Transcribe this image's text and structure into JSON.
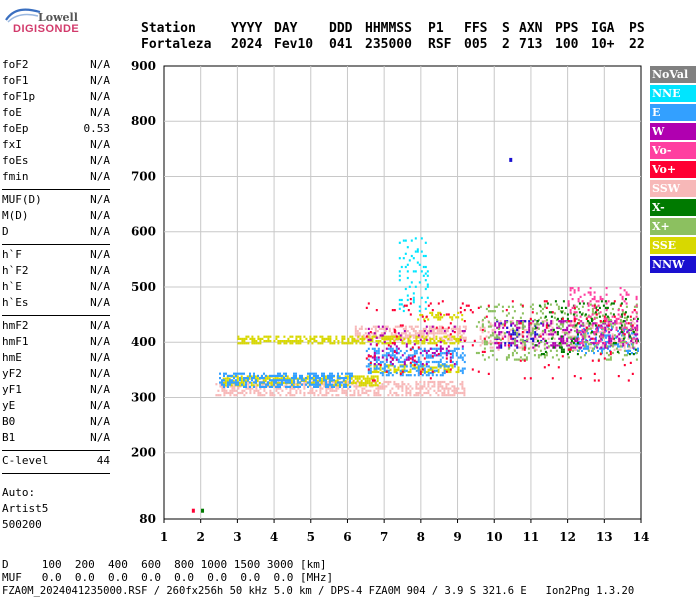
{
  "logo": {
    "top": "Lowell",
    "bottom": "DIGISONDE"
  },
  "header": {
    "labels": [
      "Station",
      "YYYY",
      "DAY",
      "DDD",
      "HHMMSS",
      "P1",
      "FFS",
      "S",
      "AXN",
      "PPS",
      "IGA",
      "PS"
    ],
    "values": [
      "Fortaleza",
      "2024",
      "Fev10",
      "041",
      "235000",
      "RSF",
      "005",
      "2",
      "713",
      "100",
      "10+",
      "22"
    ]
  },
  "params": {
    "group1": [
      {
        "label": "foF2",
        "value": "N/A"
      },
      {
        "label": "foF1",
        "value": "N/A"
      },
      {
        "label": "foF1p",
        "value": "N/A"
      },
      {
        "label": "foE",
        "value": "N/A"
      },
      {
        "label": "foEp",
        "value": "0.53"
      },
      {
        "label": "fxI",
        "value": "N/A"
      },
      {
        "label": "foEs",
        "value": "N/A"
      },
      {
        "label": "fmin",
        "value": "N/A"
      }
    ],
    "group2": [
      {
        "label": "MUF(D)",
        "value": "N/A"
      },
      {
        "label": "M(D)",
        "value": "N/A"
      },
      {
        "label": "D",
        "value": "N/A"
      }
    ],
    "group3": [
      {
        "label": "h`F",
        "value": "N/A"
      },
      {
        "label": "h`F2",
        "value": "N/A"
      },
      {
        "label": "h`E",
        "value": "N/A"
      },
      {
        "label": "h`Es",
        "value": "N/A"
      }
    ],
    "group4": [
      {
        "label": "hmF2",
        "value": "N/A"
      },
      {
        "label": "hmF1",
        "value": "N/A"
      },
      {
        "label": "hmE",
        "value": "N/A"
      },
      {
        "label": "yF2",
        "value": "N/A"
      },
      {
        "label": "yF1",
        "value": "N/A"
      },
      {
        "label": "yE",
        "value": "N/A"
      },
      {
        "label": "B0",
        "value": "N/A"
      },
      {
        "label": "B1",
        "value": "N/A"
      }
    ],
    "group5": [
      {
        "label": "C-level",
        "value": "44"
      }
    ]
  },
  "auto": [
    "Auto:",
    "Artist5",
    "500200"
  ],
  "bottom": {
    "d_line": "D     100  200  400  600  800 1000 1500 3000 [km]",
    "muf_line": "MUF   0.0  0.0  0.0  0.0  0.0  0.0  0.0  0.0 [MHz]",
    "footer": "FZA0M_2024041235000.RSF / 260fx256h 50 kHz 5.0 km / DPS-4 FZA0M 904 / 3.9 S 321.6 E   Ion2Png 1.3.20"
  },
  "legend": [
    {
      "label": "NoVal",
      "color": "#808080"
    },
    {
      "label": "NNE",
      "color": "#00e5ff"
    },
    {
      "label": "E",
      "color": "#33a0ff"
    },
    {
      "label": "W",
      "color": "#b000b0"
    },
    {
      "label": "Vo-",
      "color": "#ff3fa0"
    },
    {
      "label": "Vo+",
      "color": "#ff0033"
    },
    {
      "label": "SSW",
      "color": "#f7b8b8"
    },
    {
      "label": "X-",
      "color": "#007a00"
    },
    {
      "label": "X+",
      "color": "#8cc060"
    },
    {
      "label": "SSE",
      "color": "#d8d800"
    },
    {
      "label": "NNW",
      "color": "#1a10d0"
    }
  ],
  "chart_data": {
    "type": "scatter",
    "xlabel": "",
    "ylabel": "",
    "xlim": [
      1,
      14
    ],
    "ylim": [
      80,
      900
    ],
    "x_ticks": [
      1,
      2,
      3,
      4,
      5,
      6,
      7,
      8,
      9,
      10,
      11,
      12,
      13,
      14
    ],
    "y_ticks": [
      80,
      200,
      300,
      400,
      500,
      600,
      700,
      800,
      900
    ],
    "grid": true,
    "clusters": [
      {
        "type": "SSW",
        "x_range": [
          2.4,
          9.2
        ],
        "h_range": [
          305,
          330
        ],
        "density": 0.5
      },
      {
        "type": "SSW",
        "x_range": [
          6.2,
          9.2
        ],
        "h_range": [
          405,
          430
        ],
        "density": 0.55
      },
      {
        "type": "SSW",
        "x_range": [
          9.6,
          13.9
        ],
        "h_range": [
          385,
          440
        ],
        "density": 0.25
      },
      {
        "type": "SSE",
        "x_range": [
          3.0,
          9.1
        ],
        "h_range": [
          398,
          412
        ],
        "density": 0.6
      },
      {
        "type": "SSE",
        "x_range": [
          2.6,
          6.9
        ],
        "h_range": [
          322,
          340
        ],
        "density": 0.6
      },
      {
        "type": "SSE",
        "x_range": [
          6.6,
          9.0
        ],
        "h_range": [
          345,
          360
        ],
        "density": 0.5
      },
      {
        "type": "SSE",
        "x_range": [
          7.9,
          9.1
        ],
        "h_range": [
          440,
          455
        ],
        "density": 0.35
      },
      {
        "type": "E",
        "x_range": [
          2.5,
          6.1
        ],
        "h_range": [
          318,
          345
        ],
        "density": 0.5
      },
      {
        "type": "E",
        "x_range": [
          6.5,
          9.2
        ],
        "h_range": [
          340,
          390
        ],
        "density": 0.35
      },
      {
        "type": "E",
        "x_range": [
          12.2,
          13.9
        ],
        "h_range": [
          380,
          430
        ],
        "density": 0.3
      },
      {
        "type": "NNE",
        "x_range": [
          7.4,
          8.2
        ],
        "h_range": [
          455,
          590
        ],
        "density": 0.12
      },
      {
        "type": "W",
        "x_range": [
          10.0,
          13.9
        ],
        "h_range": [
          390,
          440
        ],
        "density": 0.25
      },
      {
        "type": "W",
        "x_range": [
          6.5,
          9.2
        ],
        "h_range": [
          360,
          430
        ],
        "density": 0.1
      },
      {
        "type": "NNW",
        "x_range": [
          10.0,
          11.3
        ],
        "h_range": [
          390,
          440
        ],
        "density": 0.2
      },
      {
        "type": "X+",
        "x_range": [
          9.5,
          13.9
        ],
        "h_range": [
          370,
          470
        ],
        "density": 0.15
      },
      {
        "type": "X-",
        "x_range": [
          11.0,
          13.9
        ],
        "h_range": [
          380,
          480
        ],
        "density": 0.08
      },
      {
        "type": "Vo-",
        "x_range": [
          12.0,
          13.9
        ],
        "h_range": [
          400,
          500
        ],
        "density": 0.15
      },
      {
        "type": "Vo+",
        "x_range": [
          6.5,
          13.9
        ],
        "h_range": [
          330,
          480
        ],
        "density": 0.03
      }
    ],
    "isolated_points": [
      {
        "type": "NNW",
        "x": 10.45,
        "h": 730
      },
      {
        "type": "Vo+",
        "x": 1.8,
        "h": 95
      },
      {
        "type": "X-",
        "x": 2.05,
        "h": 95
      }
    ]
  }
}
